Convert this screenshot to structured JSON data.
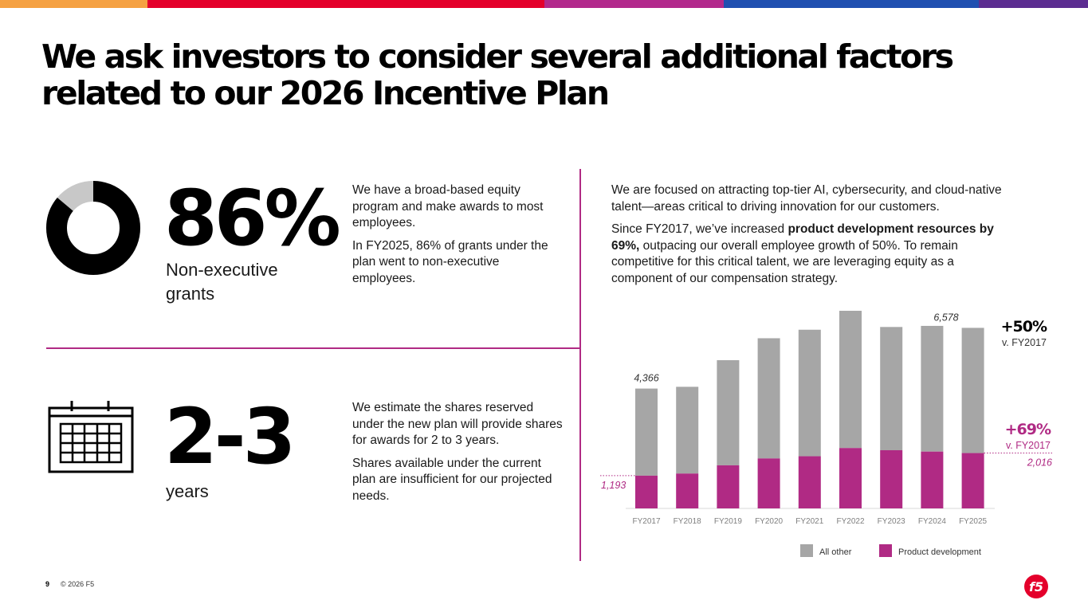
{
  "colors": {
    "accent": "#b02a84",
    "bar_other": "#a6a6a6",
    "bar_product": "#b02a84",
    "logo_red": "#e4002b",
    "top_stripes": [
      "#f5a142",
      "#e4002b",
      "#b2298c",
      "#1f4fb0",
      "#5c2d91"
    ]
  },
  "title": "We ask investors to consider several additional factors related to our 2026 Incentive Plan",
  "stat1": {
    "value": "86%",
    "percent": 86,
    "label": "Non-executive grants",
    "para1": "We have a broad-based equity program and make awards to most employees.",
    "para2": "In FY2025, 86% of grants under the plan went to non-executive employees."
  },
  "stat2": {
    "value": "2-3",
    "label": "years",
    "para1": "We estimate the shares reserved under the new plan will provide shares for awards for 2 to 3 years.",
    "para2": "Shares available under the current plan are insufficient for our projected needs."
  },
  "right": {
    "para1": "We are focused on attracting top-tier AI, cybersecurity, and cloud-native talent—areas critical to driving innovation for our customers.",
    "para2_before": "Since FY2017, we’ve increased ",
    "para2_bold": "product development resources by 69%,",
    "para2_after": " outpacing our overall employee growth of 50%. To remain competitive for this critical talent, we are leveraging equity as a component of our compensation strategy."
  },
  "chart_data": {
    "type": "bar",
    "stacked": true,
    "categories": [
      "FY2017",
      "FY2018",
      "FY2019",
      "FY2020",
      "FY2021",
      "FY2022",
      "FY2023",
      "FY2024",
      "FY2025"
    ],
    "series": [
      {
        "name": "Product development",
        "values": [
          1193,
          1270,
          1570,
          1820,
          1900,
          2200,
          2120,
          2070,
          2016
        ]
      },
      {
        "name": "All other",
        "values": [
          3173,
          3160,
          3830,
          4380,
          4610,
          5000,
          4490,
          4580,
          4562
        ]
      }
    ],
    "totals_labels": {
      "first": "4,366",
      "last": "6,578"
    },
    "product_labels": {
      "first": "1,193",
      "last": "2,016"
    },
    "callouts": [
      {
        "value": "+50%",
        "sub": "v. FY2017"
      },
      {
        "value": "+69%",
        "sub": "v. FY2017"
      }
    ],
    "legend": [
      "All other",
      "Product development"
    ],
    "ylim": [
      0,
      7200
    ]
  },
  "footer": {
    "page": "9",
    "copyright": "© 2026 F5",
    "logo_text": "f5"
  }
}
